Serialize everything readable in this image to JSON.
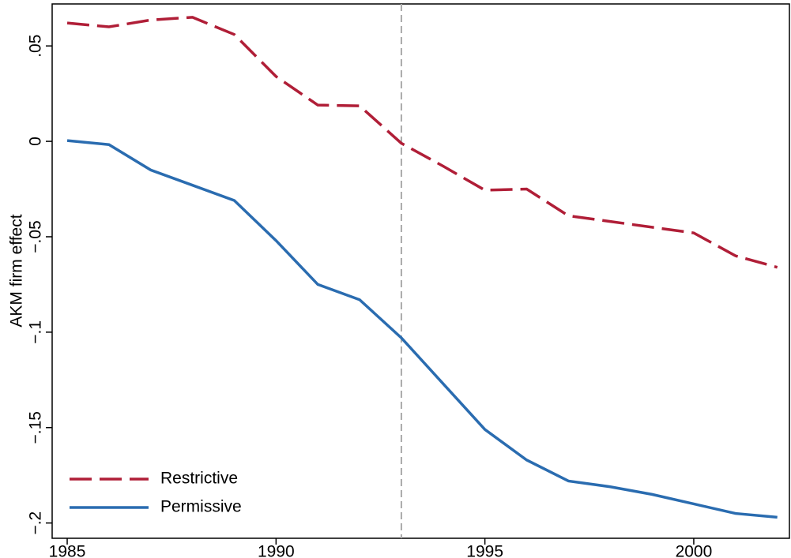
{
  "chart_data": {
    "type": "line",
    "y_label": "AKM firm effect",
    "x": [
      1985,
      1986,
      1987,
      1988,
      1989,
      1990,
      1991,
      1992,
      1993,
      1994,
      1995,
      1996,
      1997,
      1998,
      1999,
      2000,
      2001,
      2002
    ],
    "series": [
      {
        "name": "Restrictive",
        "color": "#b01e37",
        "style": "dashed",
        "values": [
          0.062,
          0.06,
          0.0636,
          0.065,
          0.056,
          0.034,
          0.019,
          0.0186,
          -0.001,
          -0.013,
          -0.0256,
          -0.025,
          -0.039,
          -0.042,
          -0.045,
          -0.048,
          -0.06,
          -0.066
        ]
      },
      {
        "name": "Permissive",
        "color": "#2a6cb0",
        "style": "solid",
        "values": [
          0.0004,
          -0.0017,
          -0.015,
          -0.023,
          -0.031,
          -0.052,
          -0.075,
          -0.083,
          -0.103,
          -0.127,
          -0.151,
          -0.167,
          -0.178,
          -0.181,
          -0.185,
          -0.19,
          -0.195,
          -0.197
        ]
      }
    ],
    "xlim": [
      1984.64,
      2002.29
    ],
    "xticks": [
      1985,
      1990,
      1995,
      2000
    ],
    "ylim": [
      -0.208,
      0.072
    ],
    "yticks": [
      {
        "value": 0.05,
        "label": ".05"
      },
      0,
      {
        "value": -0.05,
        "label": "−.05"
      },
      {
        "value": -0.1,
        "label": "−.1"
      },
      {
        "value": -0.15,
        "label": "−.15"
      },
      {
        "value": -0.2,
        "label": "−.2"
      }
    ],
    "vline": 1993,
    "legend": "lower left"
  }
}
